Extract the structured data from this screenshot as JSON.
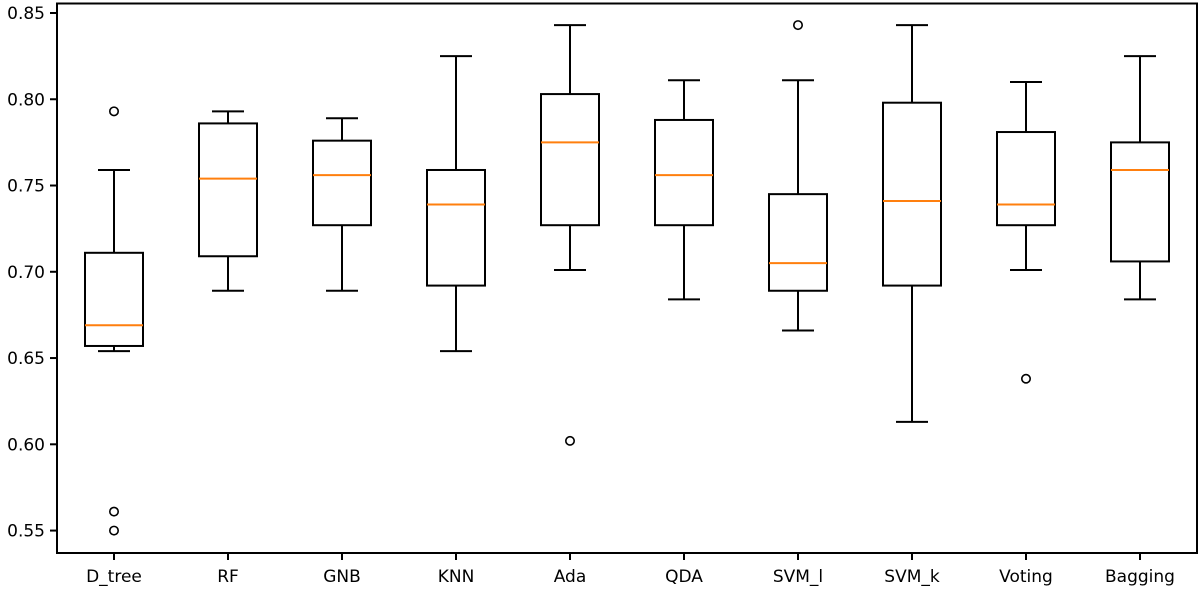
{
  "chart_data": {
    "type": "boxplot",
    "title": "",
    "xlabel": "",
    "ylabel": "",
    "grid": false,
    "background_color": "#ffffff",
    "box_line_color": "#000000",
    "median_color": "#ff7f0e",
    "ylim": [
      0.537,
      0.8555
    ],
    "yticks": [
      0.55,
      0.6,
      0.65,
      0.7,
      0.75,
      0.8,
      0.85
    ],
    "ytick_labels": [
      "0.55",
      "0.60",
      "0.65",
      "0.70",
      "0.75",
      "0.80",
      "0.85"
    ],
    "categories": [
      "D_tree",
      "RF",
      "GNB",
      "KNN",
      "Ada",
      "QDA",
      "SVM_l",
      "SVM_k",
      "Voting",
      "Bagging"
    ],
    "series": [
      {
        "name": "D_tree",
        "whislo": 0.654,
        "q1": 0.657,
        "med": 0.669,
        "q3": 0.711,
        "whishi": 0.759,
        "outliers": [
          0.793,
          0.561,
          0.55
        ]
      },
      {
        "name": "RF",
        "whislo": 0.689,
        "q1": 0.709,
        "med": 0.754,
        "q3": 0.786,
        "whishi": 0.793,
        "outliers": []
      },
      {
        "name": "GNB",
        "whislo": 0.689,
        "q1": 0.727,
        "med": 0.756,
        "q3": 0.776,
        "whishi": 0.789,
        "outliers": []
      },
      {
        "name": "KNN",
        "whislo": 0.654,
        "q1": 0.692,
        "med": 0.739,
        "q3": 0.759,
        "whishi": 0.825,
        "outliers": []
      },
      {
        "name": "Ada",
        "whislo": 0.701,
        "q1": 0.727,
        "med": 0.775,
        "q3": 0.803,
        "whishi": 0.843,
        "outliers": [
          0.602
        ]
      },
      {
        "name": "QDA",
        "whislo": 0.684,
        "q1": 0.727,
        "med": 0.756,
        "q3": 0.788,
        "whishi": 0.811,
        "outliers": []
      },
      {
        "name": "SVM_l",
        "whislo": 0.666,
        "q1": 0.689,
        "med": 0.705,
        "q3": 0.745,
        "whishi": 0.811,
        "outliers": [
          0.843
        ]
      },
      {
        "name": "SVM_k",
        "whislo": 0.613,
        "q1": 0.692,
        "med": 0.741,
        "q3": 0.798,
        "whishi": 0.843,
        "outliers": []
      },
      {
        "name": "Voting",
        "whislo": 0.701,
        "q1": 0.727,
        "med": 0.739,
        "q3": 0.781,
        "whishi": 0.81,
        "outliers": [
          0.638
        ]
      },
      {
        "name": "Bagging",
        "whislo": 0.684,
        "q1": 0.706,
        "med": 0.759,
        "q3": 0.775,
        "whishi": 0.825,
        "outliers": []
      }
    ]
  }
}
